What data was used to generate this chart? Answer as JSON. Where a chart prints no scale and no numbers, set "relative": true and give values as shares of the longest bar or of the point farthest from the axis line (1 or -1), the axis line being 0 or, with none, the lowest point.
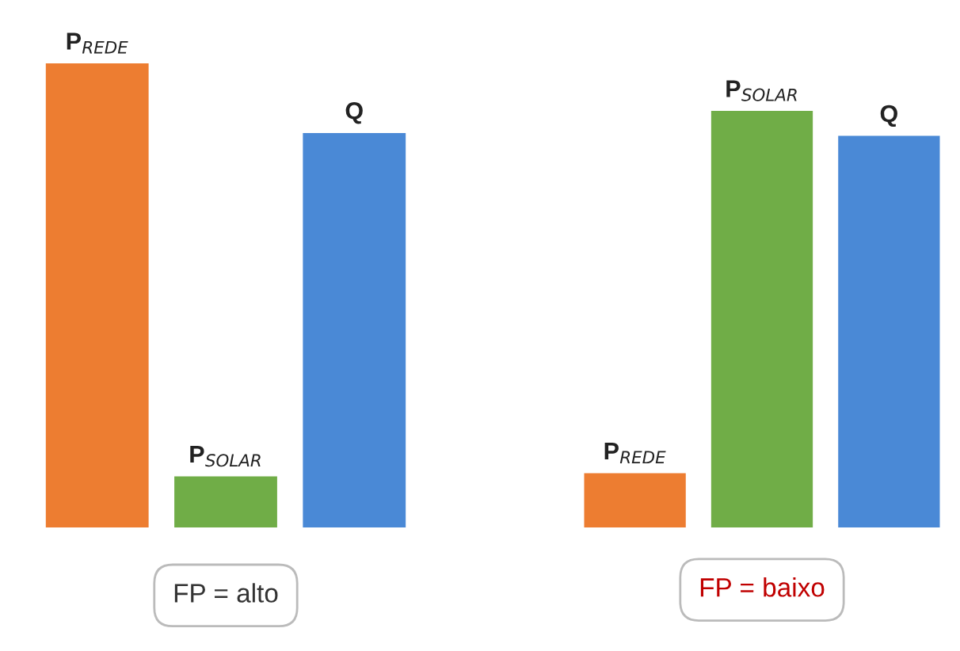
{
  "chart_data": [
    {
      "type": "bar",
      "relative": true,
      "categories": [
        null
      ],
      "xlabel": "FP = alto",
      "series": [
        {
          "name": "P$_{REDE}$",
          "color": "#ed7d31",
          "values": [
            1
          ]
        },
        {
          "name": "P$_{SOLAR}$",
          "color": "#70ad47",
          "values": [
            0.11
          ]
        },
        {
          "name": "Q",
          "color": "#4a89d6",
          "values": [
            0.85
          ]
        }
      ]
    },
    {
      "type": "bar",
      "relative": true,
      "categories": [
        null
      ],
      "xlabel": "FP = baixo",
      "series": [
        {
          "name": "P$_{REDE}$",
          "color": "#ed7d31",
          "values": [
            0.13
          ]
        },
        {
          "name": "P$_{SOLAR}$",
          "color": "#70ad47",
          "values": [
            1
          ]
        },
        {
          "name": "Q",
          "color": "#4a89d6",
          "values": [
            0.94
          ]
        }
      ]
    }
  ]
}
